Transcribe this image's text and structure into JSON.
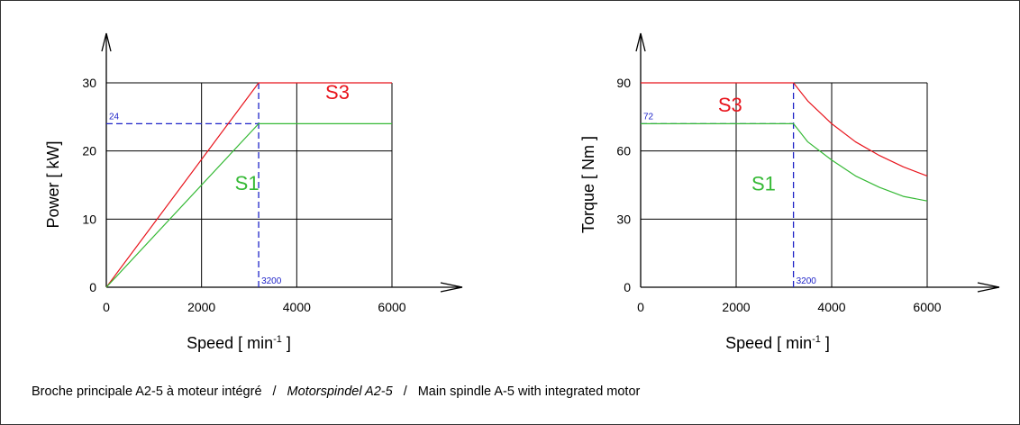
{
  "chart_data": [
    {
      "type": "line",
      "ylabel": "Power  [ kW]",
      "xlabel_main": "Speed   [ min",
      "xlabel_sup": "-1",
      "xlabel_end": " ]",
      "xlim": [
        0,
        6000
      ],
      "ylim": [
        0,
        30
      ],
      "x_ticks": [
        0,
        2000,
        4000,
        6000
      ],
      "y_ticks": [
        0,
        10,
        20,
        30
      ],
      "x_tick_labels": [
        "0",
        "2000",
        "4000",
        "6000"
      ],
      "y_tick_labels": [
        "0",
        "10",
        "20",
        "30"
      ],
      "grid": true,
      "series": [
        {
          "name": "S3",
          "color": "#e8141c",
          "x": [
            0,
            3200,
            6000
          ],
          "y": [
            0,
            30,
            30
          ],
          "label_at": [
            4600,
            27.6
          ]
        },
        {
          "name": "S1",
          "color": "#35b935",
          "x": [
            0,
            3200,
            6000
          ],
          "y": [
            0,
            24,
            24
          ],
          "label_at": [
            2700,
            14.3
          ]
        }
      ],
      "markers": {
        "color": "#1f24c8",
        "x": 3200,
        "x_label": "3200",
        "y": 24,
        "y_label": "24"
      }
    },
    {
      "type": "line",
      "ylabel": "Torque  [ Nm ]",
      "xlabel_main": "Speed   [ min",
      "xlabel_sup": "-1",
      "xlabel_end": " ]",
      "xlim": [
        0,
        6000
      ],
      "ylim": [
        0,
        90
      ],
      "x_ticks": [
        0,
        2000,
        4000,
        6000
      ],
      "y_ticks": [
        0,
        30,
        60,
        90
      ],
      "x_tick_labels": [
        "0",
        "2000",
        "4000",
        "6000"
      ],
      "y_tick_labels": [
        "0",
        "30",
        "60",
        "90"
      ],
      "grid": true,
      "series": [
        {
          "name": "S3",
          "color": "#e8141c",
          "x": [
            0,
            3200,
            3500,
            4000,
            4500,
            5000,
            5500,
            6000
          ],
          "y": [
            90,
            90,
            82,
            72,
            64,
            58,
            53,
            49
          ],
          "label_at": [
            1620,
            77.4
          ]
        },
        {
          "name": "S1",
          "color": "#35b935",
          "x": [
            0,
            3200,
            3500,
            4000,
            4500,
            5000,
            5500,
            6000
          ],
          "y": [
            72,
            72,
            64,
            56,
            49,
            44,
            40,
            38
          ],
          "label_at": [
            2320,
            42.6
          ]
        }
      ],
      "markers": {
        "color": "#1f24c8",
        "x": 3200,
        "x_label": "3200",
        "y": 72,
        "y_label": "72"
      }
    }
  ],
  "caption": {
    "part1": "Broche principale A2-5 à moteur intégré",
    "sep": "/",
    "part2": "Motorspindel A2-5",
    "part3": "Main spindle A-5 with integrated motor"
  }
}
